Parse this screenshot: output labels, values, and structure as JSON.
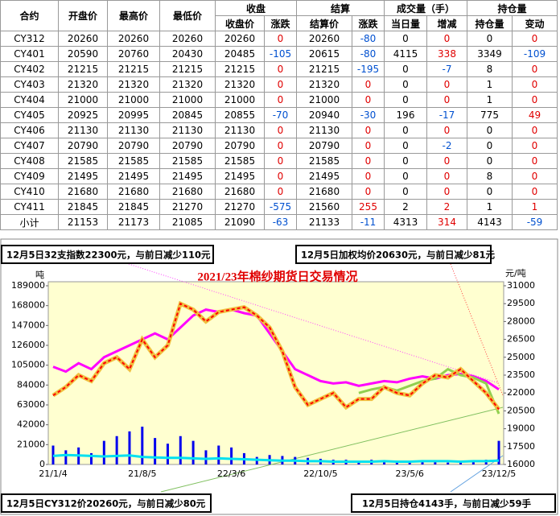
{
  "table": {
    "head_top": [
      "合约",
      "开盘价",
      "最高价",
      "最低价",
      "收盘",
      "结算",
      "成交量（手）",
      "持仓量"
    ],
    "head_sub": [
      "收盘价",
      "涨跌",
      "结算价",
      "涨跌",
      "当日量",
      "增减",
      "持仓量",
      "变动"
    ],
    "rows": [
      [
        "CY312",
        20260,
        20260,
        20260,
        20260,
        0,
        20260,
        -80,
        0,
        0,
        0,
        0
      ],
      [
        "CY401",
        20590,
        20760,
        20430,
        20485,
        -105,
        20615,
        -80,
        4115,
        338,
        3349,
        -109
      ],
      [
        "CY402",
        21215,
        21215,
        21215,
        21215,
        0,
        21215,
        -195,
        0,
        -7,
        8,
        0
      ],
      [
        "CY403",
        21320,
        21320,
        21320,
        21320,
        0,
        21320,
        0,
        0,
        0,
        1,
        0
      ],
      [
        "CY404",
        21000,
        21000,
        21000,
        21000,
        0,
        21000,
        0,
        0,
        0,
        1,
        0
      ],
      [
        "CY405",
        20925,
        20995,
        20845,
        20855,
        -70,
        20940,
        -30,
        196,
        -17,
        775,
        49
      ],
      [
        "CY406",
        21130,
        21130,
        21130,
        21130,
        0,
        21130,
        0,
        0,
        0,
        0,
        0
      ],
      [
        "CY407",
        20790,
        20790,
        20790,
        20790,
        0,
        20790,
        0,
        0,
        -2,
        0,
        0
      ],
      [
        "CY408",
        21585,
        21585,
        21585,
        21585,
        0,
        21585,
        0,
        0,
        0,
        0,
        0
      ],
      [
        "CY409",
        21495,
        21495,
        21495,
        21495,
        0,
        21495,
        0,
        0,
        0,
        8,
        0
      ],
      [
        "CY410",
        21680,
        21680,
        21680,
        21680,
        0,
        21680,
        0,
        0,
        0,
        0,
        0
      ],
      [
        "CY411",
        21845,
        21845,
        21270,
        21270,
        -575,
        21560,
        255,
        2,
        2,
        1,
        1
      ],
      [
        "小计",
        21153,
        21173,
        21085,
        21090,
        -63,
        21133,
        -11,
        4313,
        314,
        4143,
        -59
      ]
    ]
  },
  "chart_data": {
    "type": "line",
    "title": "2021/23年棉纱期货日交易情况",
    "ylabel": "吨",
    "y2label": "元/吨",
    "annotations": [
      "12月5日32支指数22300元，与前日减少110元",
      "12月5日加权均价20630元，与前日减少81元",
      "12月5日CY312价20260元，与前日减少80元",
      "12月5日持仓4143手，与前日减少59手"
    ],
    "categories": [
      "21/1/4",
      null,
      null,
      null,
      null,
      null,
      null,
      "21/8/5",
      null,
      null,
      null,
      null,
      null,
      null,
      "22/3/6",
      null,
      null,
      null,
      null,
      null,
      null,
      "22/10/5",
      null,
      null,
      null,
      null,
      null,
      null,
      "23/5/6",
      null,
      null,
      null,
      null,
      null,
      null,
      "23/12/5"
    ],
    "ylim": [
      0,
      189000
    ],
    "yticks": [
      0,
      21000,
      42000,
      63000,
      84000,
      105000,
      126000,
      147000,
      168000,
      189000
    ],
    "y2lim": [
      16000,
      31000
    ],
    "y2ticks": [
      16000,
      17500,
      19000,
      20500,
      22000,
      23500,
      25000,
      26500,
      28000,
      29500,
      31000
    ],
    "series": [
      {
        "type": "bar",
        "color": "#0000ee",
        "values": [
          20000,
          15000,
          18000,
          12000,
          25000,
          30000,
          35000,
          40000,
          28000,
          22000,
          30000,
          25000,
          15000,
          20000,
          18000,
          12000,
          8000,
          10000,
          9000,
          8000,
          7000,
          6000,
          5000,
          5000,
          4000,
          5000,
          4000,
          3000,
          4000,
          3000,
          3000,
          2000,
          3000,
          4000,
          5000,
          25000
        ]
      },
      {
        "type": "line",
        "color": "#00e0f0",
        "values": [
          9000,
          10000,
          9500,
          9000,
          8500,
          9000,
          9500,
          8000,
          7500,
          7000,
          7000,
          6500,
          6000,
          6500,
          6000,
          5500,
          5000,
          4500,
          4000,
          4000,
          3500,
          3500,
          3000,
          3000,
          3000,
          3000,
          3500,
          3000,
          3000,
          3500,
          3500,
          3500,
          3000,
          3500,
          3500,
          4143
        ]
      },
      {
        "type": "line",
        "axis": "y2",
        "color": "#ff00ff",
        "values": [
          24200,
          23800,
          24500,
          24000,
          25000,
          25500,
          26000,
          26500,
          27000,
          26500,
          27500,
          28500,
          29000,
          28800,
          29000,
          28700,
          28500,
          27000,
          25500,
          24000,
          23500,
          23000,
          22800,
          22900,
          22600,
          22800,
          23000,
          22900,
          23200,
          23400,
          23200,
          23500,
          23600,
          23400,
          23000,
          22300
        ]
      },
      {
        "type": "line",
        "axis": "y2",
        "color": "#90d050",
        "values": [
          null,
          null,
          null,
          null,
          null,
          null,
          null,
          null,
          null,
          null,
          null,
          null,
          null,
          null,
          null,
          null,
          null,
          null,
          null,
          null,
          null,
          null,
          null,
          null,
          22000,
          22300,
          22500,
          22200,
          22600,
          23000,
          23200,
          24000,
          23500,
          23300,
          22800,
          20260
        ]
      },
      {
        "type": "line",
        "axis": "y2",
        "color": "#ff0000",
        "values": [
          21800,
          22500,
          23500,
          23000,
          24500,
          25000,
          24000,
          26500,
          25000,
          26000,
          29500,
          29000,
          28000,
          28800,
          29000,
          29200,
          28500,
          27500,
          25500,
          22500,
          21000,
          21500,
          22000,
          20800,
          21500,
          21500,
          22500,
          22000,
          21800,
          22800,
          23500,
          23300,
          24000,
          23000,
          22000,
          20630
        ]
      }
    ]
  }
}
